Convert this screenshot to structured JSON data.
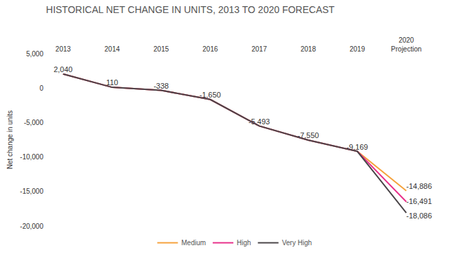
{
  "chart_data": {
    "type": "line",
    "title": "HISTORICAL NET CHANGE IN UNITS, 2013 TO 2020 FORECAST",
    "y_label": "Net change in units",
    "categories": [
      "2013",
      "2014",
      "2015",
      "2016",
      "2017",
      "2018",
      "2019",
      "2020\nProjection"
    ],
    "series": [
      {
        "name": "Medium",
        "color": "#f5a23c",
        "values": [
          2040,
          110,
          -338,
          -1650,
          -5493,
          -7550,
          -9169,
          -14886
        ],
        "value_labels": [
          "2,040",
          "110",
          "-338",
          "-1,650",
          "-5,493",
          "-7,550",
          "-9,169",
          "-14,886"
        ]
      },
      {
        "name": "High",
        "color": "#e8308a",
        "values": [
          2040,
          110,
          -338,
          -1650,
          -5493,
          -7550,
          -9169,
          -16491
        ],
        "value_labels": [
          "2,040",
          "110",
          "-338",
          "-1,650",
          "-5,493",
          "-7,550",
          "-9,169",
          "-16,491"
        ]
      },
      {
        "name": "Very High",
        "color": "#4a4548",
        "values": [
          2040,
          110,
          -338,
          -1650,
          -5493,
          -7550,
          -9169,
          -18086
        ],
        "value_labels": [
          "2,040",
          "110",
          "-338",
          "-1,650",
          "-5,493",
          "-7,550",
          "-9,169",
          "-18,086"
        ]
      }
    ],
    "ylim": [
      -20000,
      5000
    ],
    "yticks": [
      {
        "value": 5000,
        "label": "5,000"
      },
      0,
      {
        "value": -5000,
        "label": "-5,000"
      },
      {
        "value": -10000,
        "label": "-10,000"
      },
      {
        "value": -15000,
        "label": "-15,000"
      },
      {
        "value": -20000,
        "label": "-20,000"
      }
    ],
    "grid": false,
    "legend": "bottom",
    "data_labels": true
  }
}
